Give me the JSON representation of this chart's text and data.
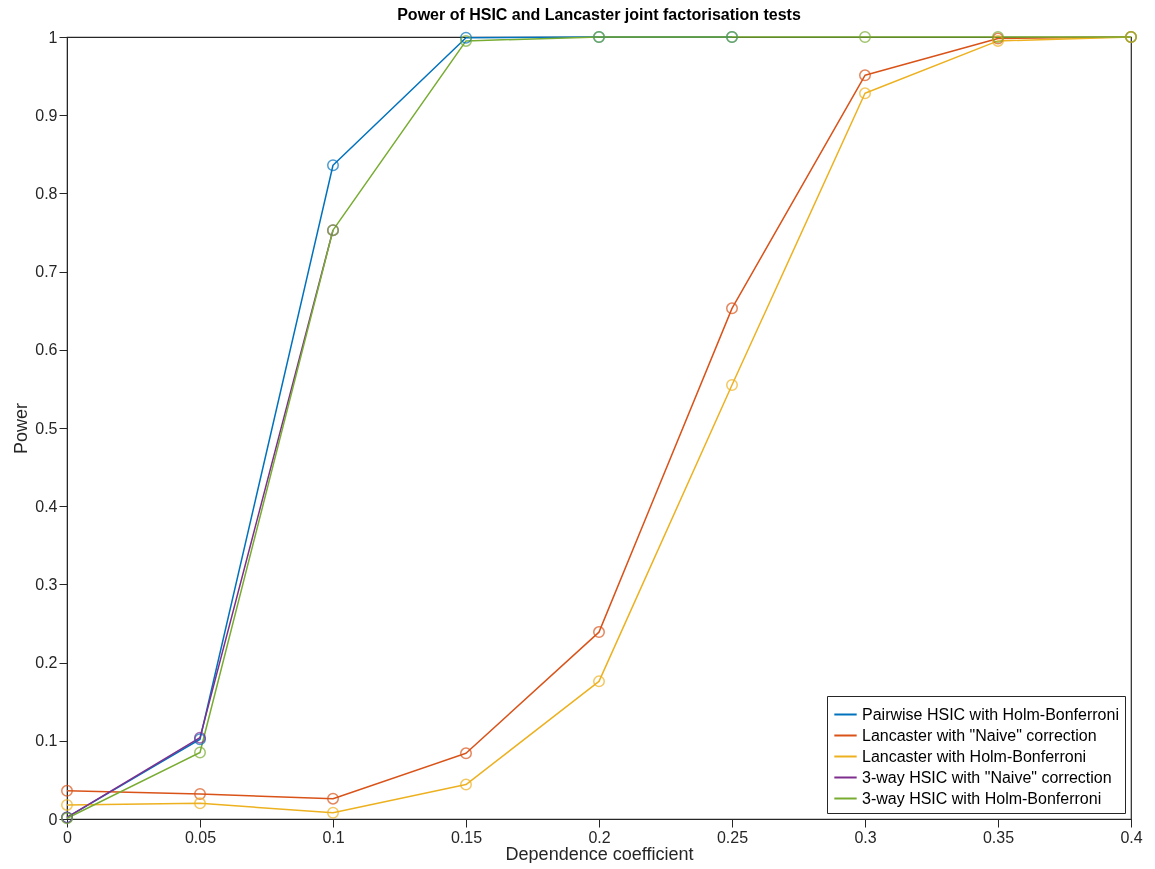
{
  "chart_data": {
    "type": "line",
    "title": "Power of HSIC and Lancaster joint factorisation tests",
    "xlabel": "Dependence coefficient",
    "ylabel": "Power",
    "x": [
      0,
      0.05,
      0.1,
      0.15,
      0.2,
      0.25,
      0.3,
      0.35,
      0.4
    ],
    "series": [
      {
        "name": "Pairwise HSIC with Holm-Bonferroni",
        "color": "#0072bd",
        "values": [
          0.002,
          0.102,
          0.836,
          0.999,
          1,
          1,
          null,
          null,
          null
        ]
      },
      {
        "name": "Lancaster with \"Naive\" correction",
        "color": "#d95319",
        "values": [
          0.036,
          0.032,
          0.026,
          0.084,
          0.239,
          0.653,
          0.951,
          0.998,
          1
        ]
      },
      {
        "name": "Lancaster with Holm-Bonferroni",
        "color": "#edb120",
        "values": [
          0.018,
          0.02,
          0.008,
          0.044,
          0.176,
          0.555,
          0.928,
          0.995,
          1
        ]
      },
      {
        "name": "3-way HSIC with \"Naive\" correction",
        "color": "#7e2f8e",
        "values": [
          0.002,
          0.104,
          0.753,
          null,
          null,
          null,
          null,
          null,
          null
        ]
      },
      {
        "name": "3-way HSIC with Holm-Bonferroni",
        "color": "#77ac30",
        "values": [
          0.001,
          0.085,
          0.753,
          0.995,
          1,
          1,
          1,
          1,
          1
        ]
      }
    ],
    "xlim": [
      0,
      0.4
    ],
    "xticks": [
      0,
      0.05,
      0.1,
      0.15,
      0.2,
      0.25,
      0.3,
      0.35,
      0.4
    ],
    "ylim": [
      0,
      1
    ],
    "yticks": [
      0,
      0.1,
      0.2,
      0.3,
      0.4,
      0.5,
      0.6,
      0.7,
      0.8,
      0.9,
      1
    ],
    "grid": false,
    "legend": "bottom right",
    "marker": "circle",
    "line_style": "solid"
  }
}
